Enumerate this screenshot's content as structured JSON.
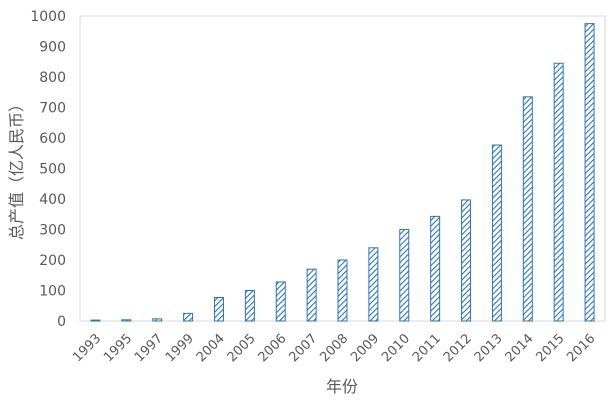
{
  "chart_data": {
    "type": "bar",
    "title": "",
    "xlabel": "年份",
    "ylabel": "总产值（亿人民币）",
    "ylim": [
      0,
      1000
    ],
    "yticks": [
      0,
      100,
      200,
      300,
      400,
      500,
      600,
      700,
      800,
      900,
      1000
    ],
    "categories": [
      "1993",
      "1995",
      "1997",
      "1999",
      "2004",
      "2005",
      "2006",
      "2007",
      "2008",
      "2009",
      "2010",
      "2011",
      "2012",
      "2013",
      "2014",
      "2015",
      "2016"
    ],
    "values": [
      3,
      4,
      7,
      25,
      77,
      100,
      128,
      170,
      200,
      240,
      300,
      343,
      397,
      577,
      735,
      845,
      975
    ],
    "grid": false,
    "legend": "none",
    "bar_pattern": "diagonal-hatch",
    "colors": {
      "bar": "#2e75b6",
      "axis": "#d9d9d9",
      "text": "#595959"
    }
  }
}
